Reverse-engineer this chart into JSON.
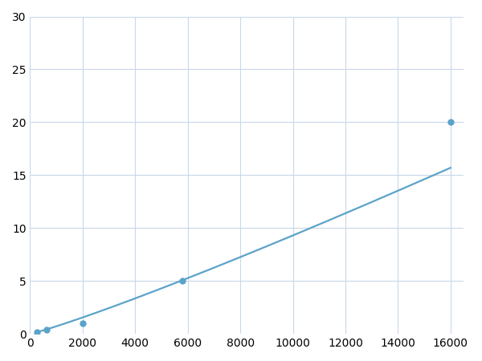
{
  "x": [
    250,
    625,
    2000,
    5800,
    16000
  ],
  "y": [
    0.2,
    0.4,
    1.0,
    5.0,
    20.0
  ],
  "line_color": "#5BA3C9",
  "marker_color": "#5BA3C9",
  "marker_size": 5,
  "marker_style": "o",
  "line_width": 1.6,
  "xlim": [
    0,
    16500
  ],
  "ylim": [
    0,
    30
  ],
  "xticks": [
    0,
    2000,
    4000,
    6000,
    8000,
    10000,
    12000,
    14000,
    16000
  ],
  "yticks": [
    0,
    5,
    10,
    15,
    20,
    25,
    30
  ],
  "grid_color": "#C8D8E8",
  "background_color": "#ffffff",
  "tick_fontsize": 10,
  "figsize": [
    6.0,
    4.5
  ],
  "dpi": 100
}
